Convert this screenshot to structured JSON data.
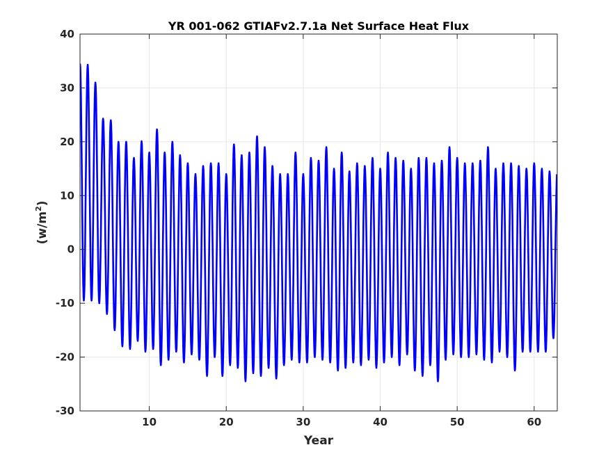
{
  "chart_data": {
    "type": "line",
    "title": "YR 001-062 GTIAFv2.7.1a Net Surface Heat Flux",
    "xlabel": "Year",
    "ylabel": "(w/m",
    "ylabel_superscript": "2",
    "ylabel_close": ")",
    "xlim": [
      1,
      63
    ],
    "ylim": [
      -30,
      40
    ],
    "xticks": [
      10,
      20,
      30,
      40,
      50,
      60
    ],
    "yticks": [
      -30,
      -20,
      -10,
      0,
      10,
      20,
      30,
      40
    ],
    "grid": true,
    "line_color": "#0000ff",
    "series": [
      {
        "x": [
          1,
          2,
          3,
          4,
          5,
          6,
          7,
          8,
          9,
          10,
          11,
          12,
          13,
          14,
          15,
          16,
          17,
          18,
          19,
          20,
          21,
          22,
          23,
          24,
          25,
          26,
          27,
          28,
          29,
          30,
          31,
          32,
          33,
          34,
          35,
          36,
          37,
          38,
          39,
          40,
          41,
          42,
          43,
          44,
          45,
          46,
          47,
          48,
          49,
          50,
          51,
          52,
          53,
          54,
          55,
          56,
          57,
          58,
          59,
          60,
          61,
          62
        ],
        "max": [
          34.5,
          34.3,
          31.0,
          24.3,
          24.0,
          20.0,
          20.0,
          17.0,
          20.1,
          18.0,
          22.3,
          18.0,
          20.0,
          17.5,
          16.0,
          14.0,
          15.5,
          16.0,
          16.0,
          14.0,
          19.5,
          17.5,
          18.0,
          21.0,
          19.0,
          15.5,
          14.0,
          14.0,
          18.0,
          14.0,
          17.0,
          16.5,
          19.0,
          15.0,
          18.0,
          14.5,
          16.0,
          15.5,
          17.0,
          15.0,
          18.0,
          17.0,
          16.5,
          15.0,
          17.0,
          17.0,
          16.0,
          16.5,
          19.0,
          17.0,
          16.0,
          16.0,
          16.5,
          19.0,
          15.0,
          16.0,
          16.0,
          15.5,
          15.0,
          16.0,
          15.0,
          14.5
        ],
        "min": [
          -9.5,
          -9.5,
          -10.0,
          -12.0,
          -15.0,
          -18.0,
          -18.5,
          -17.0,
          -19.0,
          -18.5,
          -21.5,
          -20.5,
          -19.0,
          -21.0,
          -19.5,
          -20.5,
          -23.5,
          -20.0,
          -23.5,
          -21.5,
          -22.0,
          -24.5,
          -23.0,
          -23.5,
          -22.0,
          -24.0,
          -21.5,
          -20.5,
          -21.0,
          -21.0,
          -20.0,
          -20.5,
          -21.0,
          -22.5,
          -22.0,
          -21.0,
          -21.5,
          -20.5,
          -22.0,
          -21.0,
          -20.0,
          -21.5,
          -19.5,
          -22.5,
          -23.5,
          -21.5,
          -24.5,
          -20.5,
          -19.5,
          -20.0,
          -20.0,
          -19.5,
          -20.5,
          -21.0,
          -19.0,
          -20.0,
          -22.5,
          -19.0,
          -19.0,
          -19.0,
          -19.0,
          -16.5
        ]
      }
    ]
  }
}
